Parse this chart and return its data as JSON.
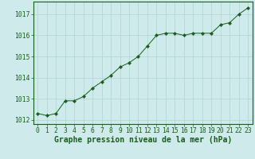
{
  "x": [
    0,
    1,
    2,
    3,
    4,
    5,
    6,
    7,
    8,
    9,
    10,
    11,
    12,
    13,
    14,
    15,
    16,
    17,
    18,
    19,
    20,
    21,
    22,
    23
  ],
  "y": [
    1012.3,
    1012.2,
    1012.3,
    1012.9,
    1012.9,
    1013.1,
    1013.5,
    1013.8,
    1014.1,
    1014.5,
    1014.7,
    1015.0,
    1015.5,
    1016.0,
    1016.1,
    1016.1,
    1016.0,
    1016.1,
    1016.1,
    1016.1,
    1016.5,
    1016.6,
    1017.0,
    1017.3
  ],
  "line_color": "#1a5c1a",
  "marker": "D",
  "marker_size": 2.2,
  "bg_color": "#ceeaea",
  "grid_color": "#b0d4d4",
  "xlabel": "Graphe pression niveau de la mer (hPa)",
  "xlabel_color": "#1a5c1a",
  "tick_color": "#1a5c1a",
  "ylim": [
    1011.8,
    1017.6
  ],
  "yticks": [
    1012,
    1013,
    1014,
    1015,
    1016,
    1017
  ],
  "xticks": [
    0,
    1,
    2,
    3,
    4,
    5,
    6,
    7,
    8,
    9,
    10,
    11,
    12,
    13,
    14,
    15,
    16,
    17,
    18,
    19,
    20,
    21,
    22,
    23
  ],
  "tick_fontsize": 5.8,
  "xlabel_fontsize": 7.0
}
